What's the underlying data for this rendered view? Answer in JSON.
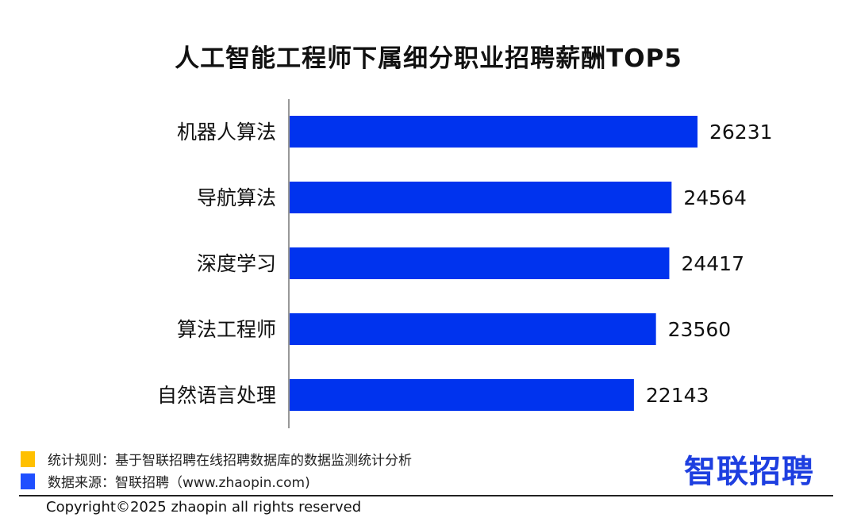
{
  "chart_data": {
    "type": "bar",
    "orientation": "horizontal",
    "title": "人工智能工程师下属细分职业招聘薪酬TOP5",
    "categories": [
      "机器人算法",
      "导航算法",
      "深度学习",
      "算法工程师",
      "自然语言处理"
    ],
    "values": [
      26231,
      24564,
      24417,
      23560,
      22143
    ],
    "xlabel": "",
    "ylabel": "",
    "xlim": [
      0,
      30000
    ],
    "grid": false,
    "bar_color": "#0033ee"
  },
  "legend": [
    {
      "label": "统计规则：基于智联招聘在线招聘数据库的数据监测统计分析",
      "color": "#ffc000"
    },
    {
      "label": "数据来源：智联招聘（www.zhaopin.com)",
      "color": "#1f4fff"
    }
  ],
  "logo": "智联招聘",
  "copyright": "Copyright©2025 zhaopin all rights reserved"
}
